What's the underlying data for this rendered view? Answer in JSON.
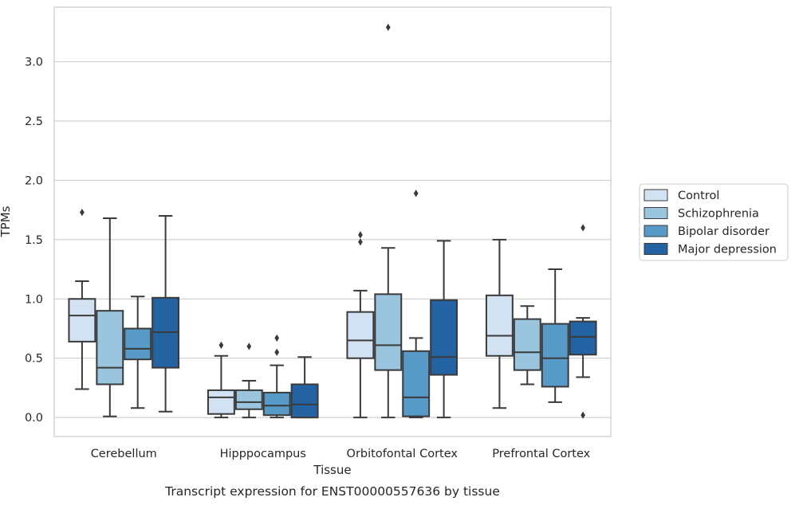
{
  "chart_data": {
    "type": "boxplot",
    "title": "",
    "caption": "Transcript expression for ENST00000557636 by tissue",
    "xlabel": "Tissue",
    "ylabel": "TPMs",
    "ylim": [
      -0.16,
      3.46
    ],
    "yticks": [
      0.0,
      0.5,
      1.0,
      1.5,
      2.0,
      2.5,
      3.0
    ],
    "ytick_labels": [
      "0.0",
      "0.5",
      "1.0",
      "1.5",
      "2.0",
      "2.5",
      "3.0"
    ],
    "grid": "horizontal",
    "legend_position": "right",
    "categories": [
      "Cerebellum",
      "Hipppocampus",
      "Orbitofontal Cortex",
      "Prefrontal Cortex"
    ],
    "series": [
      {
        "name": "Control",
        "color": "#d2e2f2",
        "boxes": [
          {
            "whislo": 0.24,
            "q1": 0.64,
            "med": 0.86,
            "q3": 1.0,
            "whishi": 1.15,
            "fliers": [
              1.73
            ]
          },
          {
            "whislo": 0.0,
            "q1": 0.03,
            "med": 0.17,
            "q3": 0.23,
            "whishi": 0.52,
            "fliers": [
              0.61
            ]
          },
          {
            "whislo": 0.0,
            "q1": 0.5,
            "med": 0.65,
            "q3": 0.89,
            "whishi": 1.07,
            "fliers": [
              1.48,
              1.54
            ]
          },
          {
            "whislo": 0.08,
            "q1": 0.52,
            "med": 0.69,
            "q3": 1.03,
            "whishi": 1.5,
            "fliers": []
          }
        ]
      },
      {
        "name": "Schizophrenia",
        "color": "#9bc4de",
        "boxes": [
          {
            "whislo": 0.01,
            "q1": 0.28,
            "med": 0.42,
            "q3": 0.9,
            "whishi": 1.68,
            "fliers": []
          },
          {
            "whislo": 0.0,
            "q1": 0.07,
            "med": 0.13,
            "q3": 0.23,
            "whishi": 0.31,
            "fliers": [
              0.6
            ]
          },
          {
            "whislo": 0.0,
            "q1": 0.4,
            "med": 0.61,
            "q3": 1.04,
            "whishi": 1.43,
            "fliers": [
              3.29
            ]
          },
          {
            "whislo": 0.28,
            "q1": 0.4,
            "med": 0.55,
            "q3": 0.83,
            "whishi": 0.94,
            "fliers": []
          }
        ]
      },
      {
        "name": "Bipolar disorder",
        "color": "#5799c7",
        "boxes": [
          {
            "whislo": 0.08,
            "q1": 0.49,
            "med": 0.58,
            "q3": 0.75,
            "whishi": 1.02,
            "fliers": []
          },
          {
            "whislo": 0.0,
            "q1": 0.02,
            "med": 0.1,
            "q3": 0.21,
            "whishi": 0.44,
            "fliers": [
              0.55,
              0.67
            ]
          },
          {
            "whislo": 0.0,
            "q1": 0.01,
            "med": 0.17,
            "q3": 0.56,
            "whishi": 0.67,
            "fliers": [
              1.89
            ]
          },
          {
            "whislo": 0.13,
            "q1": 0.26,
            "med": 0.5,
            "q3": 0.79,
            "whishi": 1.25,
            "fliers": []
          }
        ]
      },
      {
        "name": "Major depression",
        "color": "#2363a4",
        "boxes": [
          {
            "whislo": 0.05,
            "q1": 0.42,
            "med": 0.72,
            "q3": 1.01,
            "whishi": 1.7,
            "fliers": []
          },
          {
            "whislo": 0.0,
            "q1": 0.0,
            "med": 0.11,
            "q3": 0.28,
            "whishi": 0.51,
            "fliers": []
          },
          {
            "whislo": 0.0,
            "q1": 0.36,
            "med": 0.51,
            "q3": 0.99,
            "whishi": 1.49,
            "fliers": []
          },
          {
            "whislo": 0.34,
            "q1": 0.53,
            "med": 0.68,
            "q3": 0.81,
            "whishi": 0.84,
            "fliers": [
              0.02,
              1.6
            ]
          }
        ]
      }
    ]
  }
}
